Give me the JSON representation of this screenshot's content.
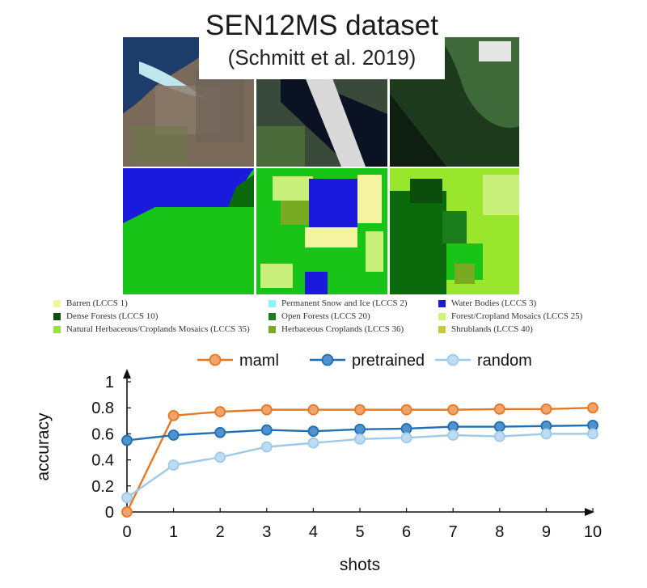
{
  "title": {
    "main": "SEN12MS dataset",
    "sub": "(Schmitt et al. 2019)"
  },
  "lccs_legend": [
    {
      "label": "Barren (LCCS 1)",
      "color": "#f4f4a0"
    },
    {
      "label": "Permanent Snow and Ice (LCCS 2)",
      "color": "#8ef4f4"
    },
    {
      "label": "Water Bodies (LCCS 3)",
      "color": "#1a1adc"
    },
    {
      "label": "Dense Forests (LCCS 10)",
      "color": "#0b4d0b"
    },
    {
      "label": "Open Forests (LCCS 20)",
      "color": "#1b7d1b"
    },
    {
      "label": "Forest/Cropland Mosaics (LCCS 25)",
      "color": "#d2f47a"
    },
    {
      "label": "Natural Herbaceous/Croplands Mosaics (LCCS 35)",
      "color": "#9ae62d"
    },
    {
      "label": "Herbaceous Croplands (LCCS 36)",
      "color": "#7aaa22"
    },
    {
      "label": "Shrublands (LCCS 40)",
      "color": "#c8c83c"
    }
  ],
  "chart_data": {
    "type": "line",
    "xlabel": "shots",
    "ylabel": "accuracy",
    "x": [
      0,
      1,
      2,
      3,
      4,
      5,
      6,
      7,
      8,
      9,
      10
    ],
    "xlim": [
      0,
      10
    ],
    "ylim": [
      0,
      1
    ],
    "yticks": [
      "0",
      "0.2",
      "0.4",
      "0.6",
      "0.8",
      "1"
    ],
    "grid": false,
    "legend_position": "top",
    "series": [
      {
        "name": "maml",
        "color": "#e87722",
        "fill": "#f0a46a",
        "values": [
          0.0,
          0.74,
          0.77,
          0.785,
          0.785,
          0.785,
          0.785,
          0.785,
          0.79,
          0.79,
          0.8
        ]
      },
      {
        "name": "pretrained",
        "color": "#1f6fb5",
        "fill": "#4f92cc",
        "values": [
          0.55,
          0.59,
          0.61,
          0.63,
          0.62,
          0.635,
          0.64,
          0.655,
          0.655,
          0.66,
          0.665
        ]
      },
      {
        "name": "random",
        "color": "#9fc9e8",
        "fill": "#bcdcf2",
        "values": [
          0.11,
          0.36,
          0.42,
          0.5,
          0.53,
          0.56,
          0.57,
          0.59,
          0.58,
          0.6,
          0.6
        ]
      }
    ]
  }
}
